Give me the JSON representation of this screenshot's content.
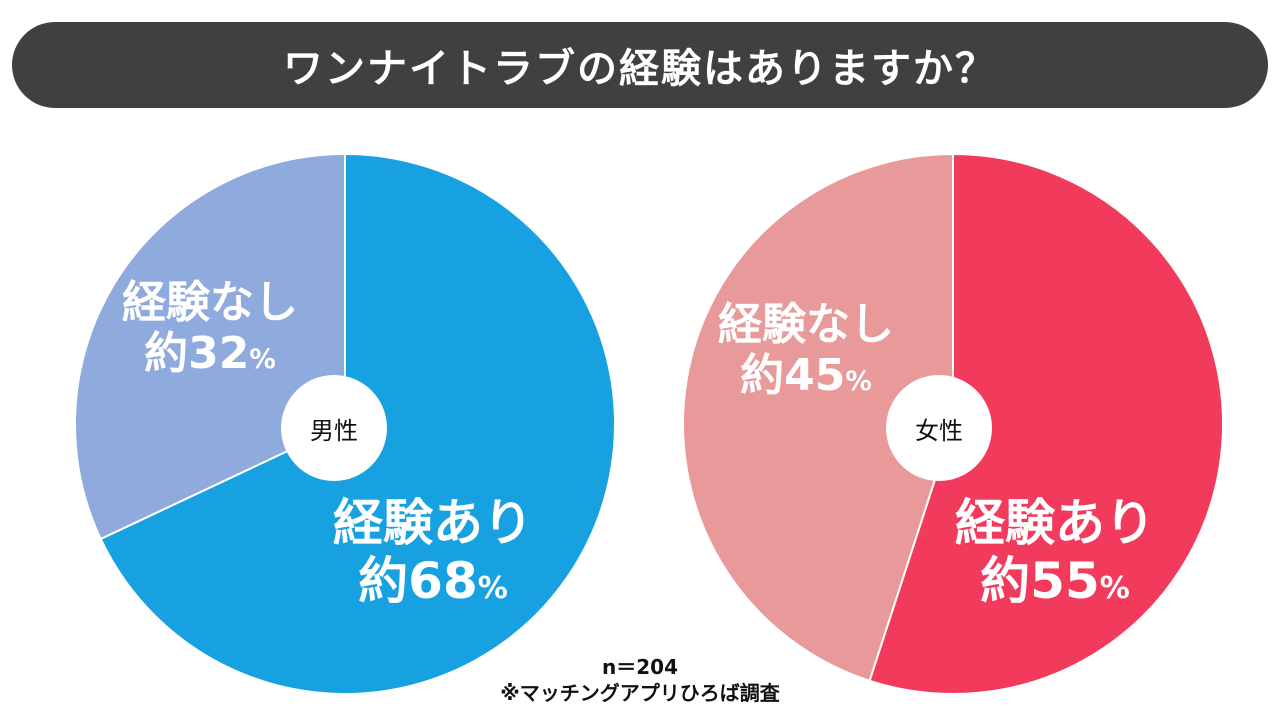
{
  "title": "ワンナイトラブの経験はありますか？",
  "footer": {
    "n_label": "n＝204",
    "source": "※マッチングアプリひろば調査"
  },
  "chart_data": [
    {
      "type": "pie",
      "center_label": "男性",
      "slices": [
        {
          "label_line1": "経験あり",
          "label_prefix": "約",
          "value": 68,
          "unit": "%",
          "color": "#17a1e0"
        },
        {
          "label_line1": "経験なし",
          "label_prefix": "約",
          "value": 32,
          "unit": "%",
          "color": "#8faadc"
        }
      ]
    },
    {
      "type": "pie",
      "center_label": "女性",
      "slices": [
        {
          "label_line1": "経験あり",
          "label_prefix": "約",
          "value": 55,
          "unit": "%",
          "color": "#f23a5d"
        },
        {
          "label_line1": "経験なし",
          "label_prefix": "約",
          "value": 45,
          "unit": "%",
          "color": "#e89a9b"
        }
      ]
    }
  ]
}
